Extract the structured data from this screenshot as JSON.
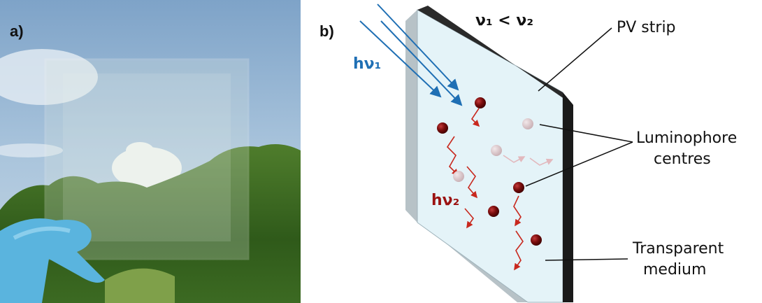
{
  "panel_a": {
    "label": "a)"
  },
  "panel_b": {
    "label": "b)",
    "frequency_relation": "ν₁ < ν₂",
    "incident_light": "hν₁",
    "emitted_light": "hν₂",
    "pv_strip": "PV strip",
    "luminophore": [
      "Luminophore",
      "centres"
    ],
    "medium": [
      "Transparent",
      "medium"
    ]
  }
}
